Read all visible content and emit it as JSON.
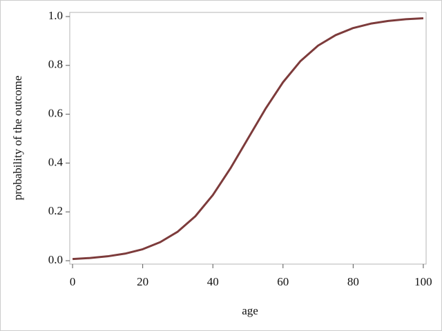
{
  "chart_data": {
    "type": "line",
    "xlabel": "age",
    "ylabel": "probability of the outcome",
    "x": [
      0,
      5,
      10,
      15,
      20,
      25,
      30,
      35,
      40,
      45,
      50,
      55,
      60,
      65,
      70,
      75,
      80,
      85,
      90,
      95,
      100
    ],
    "series": [
      {
        "color": "#7d3b3b",
        "values": [
          0.0067,
          0.011,
          0.018,
          0.029,
          0.047,
          0.076,
          0.119,
          0.182,
          0.269,
          0.378,
          0.5,
          0.622,
          0.731,
          0.818,
          0.881,
          0.924,
          0.953,
          0.971,
          0.982,
          0.989,
          0.993
        ]
      }
    ],
    "xlim": [
      -0.8,
      100.8
    ],
    "ylim": [
      -0.014,
      1.017
    ],
    "xticks": [
      0,
      20,
      40,
      60,
      80,
      100
    ],
    "yticks": [
      {
        "value": 0,
        "label": "0.0"
      },
      {
        "value": 0.2,
        "label": "0.2"
      },
      {
        "value": 0.4,
        "label": "0.4"
      },
      {
        "value": 0.6,
        "label": "0.6"
      },
      {
        "value": 0.8,
        "label": "0.8"
      },
      {
        "value": 1,
        "label": "1.0"
      }
    ],
    "grid": false
  }
}
